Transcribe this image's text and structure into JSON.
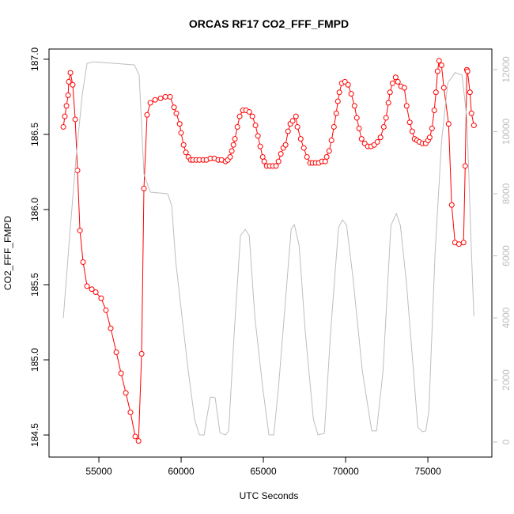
{
  "chart_data": {
    "type": "line",
    "title": "ORCAS RF17 CO2_FFF_FMPD",
    "x_label": "UTC Seconds",
    "y_label": "CO2_FFF_FMPD",
    "xlim": [
      51970,
      78890
    ],
    "ylim": [
      184.353,
      187.068
    ],
    "y2lim": [
      -484,
      12662
    ],
    "xticks": [
      55000,
      60000,
      65000,
      70000,
      75000
    ],
    "yticks": [
      184.5,
      {
        "value": 185,
        "label": "185.0"
      },
      185.5,
      {
        "value": 186,
        "label": "186.0"
      },
      186.5,
      {
        "value": 187,
        "label": "187.0"
      }
    ],
    "y2ticks": [
      0,
      2000,
      4000,
      6000,
      8000,
      10000,
      12000
    ],
    "series": [
      {
        "color": "#ff0000",
        "marker": "circle",
        "x": [
          52840,
          52930,
          53030,
          53130,
          53170,
          53270,
          53410,
          53560,
          53700,
          53850,
          54040,
          54280,
          54570,
          54810,
          55140,
          55430,
          55720,
          56060,
          56350,
          56640,
          56920,
          57210,
          57410,
          57600,
          57740,
          57930,
          58130,
          58420,
          58750,
          59040,
          59330,
          59570,
          59710,
          59910,
          60000,
          60150,
          60290,
          60440,
          60580,
          60720,
          60920,
          61110,
          61350,
          61540,
          61780,
          62020,
          62260,
          62460,
          62700,
          62840,
          62980,
          63080,
          63180,
          63270,
          63420,
          63560,
          63750,
          63950,
          64140,
          64330,
          64520,
          64670,
          64810,
          64960,
          65050,
          65200,
          65390,
          65580,
          65770,
          65920,
          66060,
          66210,
          66350,
          66500,
          66640,
          66780,
          66980,
          67070,
          67270,
          67460,
          67650,
          67840,
          67990,
          68180,
          68370,
          68560,
          68760,
          68850,
          69000,
          69140,
          69290,
          69430,
          69530,
          69620,
          69770,
          69960,
          70150,
          70340,
          70540,
          70680,
          70820,
          70970,
          71160,
          71350,
          71550,
          71740,
          71930,
          72120,
          72320,
          72460,
          72600,
          72700,
          72850,
          73040,
          73180,
          73370,
          73570,
          73710,
          73900,
          74050,
          74190,
          74340,
          74480,
          74670,
          74870,
          75010,
          75110,
          75250,
          75390,
          75490,
          75590,
          75680,
          75830,
          75970,
          76260,
          76450,
          76650,
          76890,
          77170,
          77270,
          77370,
          77410,
          77560,
          77650,
          77800
        ],
        "values": [
          186.55,
          186.62,
          186.69,
          186.76,
          186.85,
          186.91,
          186.83,
          186.6,
          186.26,
          185.86,
          185.65,
          185.49,
          185.47,
          185.45,
          185.41,
          185.33,
          185.21,
          185.05,
          184.91,
          184.78,
          184.65,
          184.49,
          184.46,
          185.04,
          186.14,
          186.63,
          186.71,
          186.73,
          186.74,
          186.75,
          186.75,
          186.68,
          186.64,
          186.57,
          186.51,
          186.43,
          186.38,
          186.35,
          186.33,
          186.33,
          186.33,
          186.33,
          186.33,
          186.33,
          186.34,
          186.34,
          186.33,
          186.33,
          186.32,
          186.33,
          186.35,
          186.39,
          186.43,
          186.47,
          186.55,
          186.62,
          186.66,
          186.66,
          186.65,
          186.62,
          186.56,
          186.49,
          186.42,
          186.35,
          186.32,
          186.29,
          186.29,
          186.29,
          186.29,
          186.32,
          186.37,
          186.41,
          186.43,
          186.52,
          186.57,
          186.59,
          186.62,
          186.55,
          186.47,
          186.41,
          186.35,
          186.31,
          186.31,
          186.31,
          186.31,
          186.32,
          186.32,
          186.35,
          186.39,
          186.46,
          186.55,
          186.64,
          186.72,
          186.78,
          186.84,
          186.85,
          186.83,
          186.77,
          186.69,
          186.61,
          186.54,
          186.47,
          186.44,
          186.42,
          186.42,
          186.43,
          186.45,
          186.48,
          186.55,
          186.61,
          186.71,
          186.78,
          186.84,
          186.88,
          186.85,
          186.82,
          186.81,
          186.69,
          186.58,
          186.52,
          186.47,
          186.46,
          186.45,
          186.44,
          186.44,
          186.46,
          186.48,
          186.54,
          186.66,
          186.78,
          186.92,
          186.99,
          186.96,
          186.81,
          186.57,
          186.03,
          185.78,
          185.77,
          185.78,
          186.29,
          186.93,
          186.92,
          186.78,
          186.64,
          186.56
        ]
      },
      {
        "color": "#bebebe",
        "axis": "y2",
        "x": [
          52840,
          53220,
          53610,
          53990,
          54280,
          54660,
          55960,
          57160,
          57450,
          57740,
          58130,
          59180,
          59430,
          59670,
          60050,
          60440,
          60820,
          61110,
          61400,
          61590,
          61780,
          62070,
          62360,
          62700,
          62890,
          63230,
          63610,
          63900,
          64140,
          64480,
          64960,
          65340,
          65630,
          65920,
          66400,
          66690,
          66880,
          67170,
          67550,
          68040,
          68320,
          68710,
          69090,
          69570,
          69810,
          70060,
          70440,
          71020,
          71590,
          71880,
          72270,
          72750,
          73090,
          73330,
          73710,
          74390,
          74670,
          74870,
          75060,
          75440,
          75830,
          76210,
          76650,
          77080,
          77370,
          77650,
          77800
        ],
        "values": [
          4000,
          6600,
          9150,
          11190,
          12200,
          12250,
          12200,
          12150,
          11820,
          8640,
          8050,
          8000,
          7610,
          5830,
          4050,
          2270,
          740,
          230,
          230,
          870,
          1450,
          1430,
          300,
          230,
          360,
          3540,
          6650,
          6850,
          6650,
          4050,
          1760,
          230,
          230,
          1760,
          4940,
          6850,
          7010,
          6340,
          3540,
          740,
          230,
          280,
          3540,
          6910,
          7160,
          6980,
          5330,
          2270,
          360,
          360,
          2270,
          6980,
          7360,
          6980,
          5070,
          480,
          330,
          360,
          990,
          6090,
          9660,
          11570,
          11900,
          11820,
          10420,
          6090,
          4050
        ]
      }
    ]
  }
}
